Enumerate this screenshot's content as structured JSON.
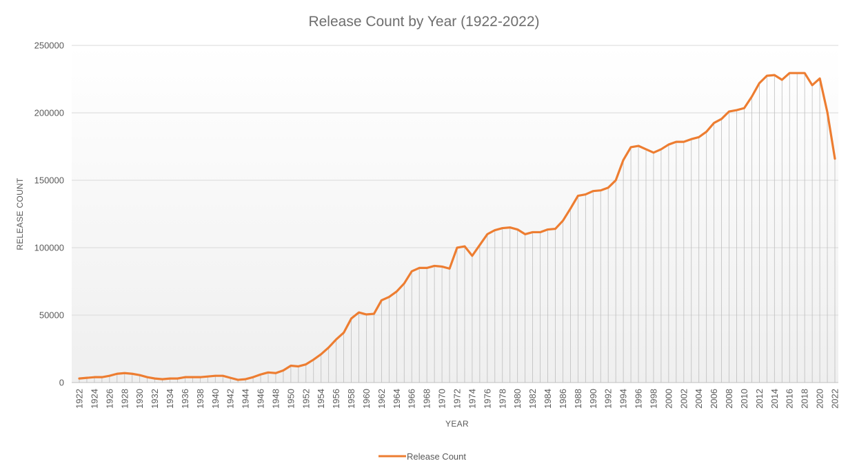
{
  "chart_data": {
    "type": "line",
    "title": "Release Count by Year (1922-2022)",
    "xlabel": "YEAR",
    "ylabel": "RELEASE COUNT",
    "ylim": [
      0,
      250000
    ],
    "y_ticks": [
      "0",
      "50000",
      "100000",
      "150000",
      "200000",
      "250000"
    ],
    "x_tick_labels": [
      "1922",
      "1924",
      "1926",
      "1928",
      "1930",
      "1932",
      "1934",
      "1936",
      "1938",
      "1940",
      "1942",
      "1944",
      "1946",
      "1948",
      "1950",
      "1952",
      "1954",
      "1956",
      "1958",
      "1960",
      "1962",
      "1964",
      "1966",
      "1968",
      "1970",
      "1972",
      "1974",
      "1976",
      "1978",
      "1980",
      "1982",
      "1984",
      "1986",
      "1988",
      "1990",
      "1992",
      "1994",
      "1996",
      "1998",
      "2000",
      "2002",
      "2004",
      "2006",
      "2008",
      "2010",
      "2012",
      "2014",
      "2016",
      "2018",
      "2020",
      "2022"
    ],
    "x": [
      1922,
      1923,
      1924,
      1925,
      1926,
      1927,
      1928,
      1929,
      1930,
      1931,
      1932,
      1933,
      1934,
      1935,
      1936,
      1937,
      1938,
      1939,
      1940,
      1941,
      1942,
      1943,
      1944,
      1945,
      1946,
      1947,
      1948,
      1949,
      1950,
      1951,
      1952,
      1953,
      1954,
      1955,
      1956,
      1957,
      1958,
      1959,
      1960,
      1961,
      1962,
      1963,
      1964,
      1965,
      1966,
      1967,
      1968,
      1969,
      1970,
      1971,
      1972,
      1973,
      1974,
      1975,
      1976,
      1977,
      1978,
      1979,
      1980,
      1981,
      1982,
      1983,
      1984,
      1985,
      1986,
      1987,
      1988,
      1989,
      1990,
      1991,
      1992,
      1993,
      1994,
      1995,
      1996,
      1997,
      1998,
      1999,
      2000,
      2001,
      2002,
      2003,
      2004,
      2005,
      2006,
      2007,
      2008,
      2009,
      2010,
      2011,
      2012,
      2013,
      2014,
      2015,
      2016,
      2017,
      2018,
      2019,
      2020,
      2021,
      2022
    ],
    "series": [
      {
        "name": "Release Count",
        "color": "#ed7d31",
        "values": [
          3000,
          3500,
          4000,
          4000,
          5000,
          6500,
          7000,
          6500,
          5500,
          4000,
          3000,
          2500,
          3000,
          3000,
          4000,
          4000,
          4000,
          4500,
          5000,
          5000,
          3500,
          2000,
          2500,
          4000,
          6000,
          7500,
          7000,
          9000,
          12500,
          12000,
          13500,
          17000,
          21000,
          26000,
          32000,
          37000,
          47500,
          52000,
          50500,
          51000,
          61000,
          63500,
          67500,
          73500,
          82500,
          85000,
          85000,
          86500,
          86000,
          84500,
          100000,
          101000,
          94000,
          102000,
          110000,
          113000,
          114500,
          115000,
          113500,
          110000,
          111500,
          111500,
          113500,
          114000,
          120000,
          129000,
          138500,
          139500,
          142000,
          142500,
          144500,
          150000,
          165000,
          174500,
          175500,
          173000,
          170500,
          173000,
          176500,
          178500,
          178500,
          180500,
          182000,
          186000,
          192500,
          195500,
          201000,
          202000,
          203500,
          212000,
          222000,
          227500,
          228000,
          224500,
          229500,
          229500,
          229500,
          220500,
          225500,
          200500,
          166000
        ]
      }
    ],
    "grid": true,
    "legend_position": "bottom"
  }
}
